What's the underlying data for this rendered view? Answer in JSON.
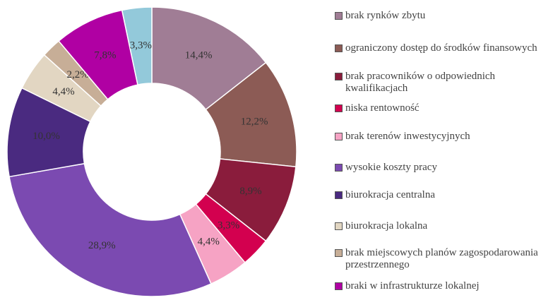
{
  "chart_data": {
    "type": "donut",
    "categories": [
      "brak rynków zbytu",
      "ograniczony dostęp do środków finansowych",
      "brak pracowników o odpowiednich kwalifikacjach",
      "niska rentowność",
      "brak terenów inwestycyjnych",
      "wysokie koszty pracy",
      "biurokracja centralna",
      "biurokracja lokalna",
      "brak miejscowych planów zagospodarowania przestrzennego",
      "braki w infrastrukturze lokalnej",
      null
    ],
    "values": [
      14.4,
      12.2,
      8.9,
      3.3,
      4.4,
      28.9,
      10.0,
      4.4,
      2.2,
      7.8,
      3.3
    ],
    "value_labels": [
      "14,4%",
      "12,2%",
      "8,9%",
      "3,3%",
      "4,4%",
      "28,9%",
      "10,0%",
      "4,4%",
      "2,2%",
      "7,8%",
      "3,3%"
    ],
    "colors": [
      "#a07d95",
      "#8c5b55",
      "#8a1c3c",
      "#d3004f",
      "#f6a3c4",
      "#7b4ab1",
      "#4a2a80",
      "#e2d6c2",
      "#c7ae97",
      "#b000a3",
      "#93c9da"
    ],
    "legend": "right"
  }
}
